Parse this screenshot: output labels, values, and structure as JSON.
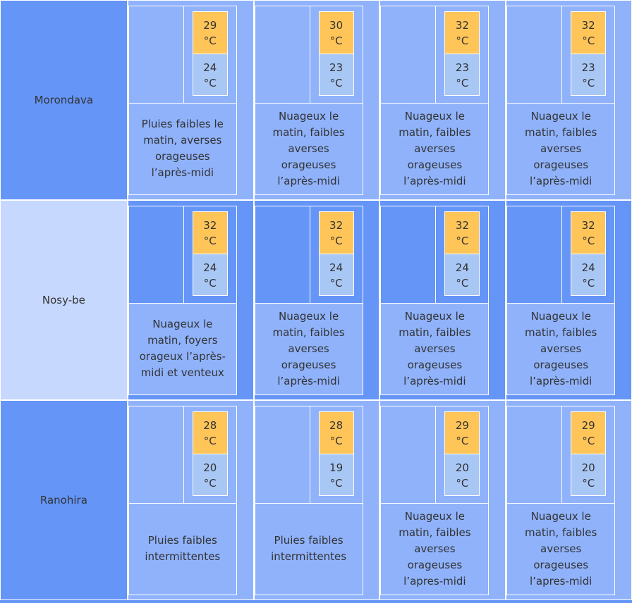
{
  "rows": [
    {
      "city": "Morondava",
      "days": [
        {
          "max": "29",
          "min": "24",
          "unit": "°C",
          "desc": "Pluies faibles le matin, averses orageuses l’après-midi"
        },
        {
          "max": "30",
          "min": "23",
          "unit": "°C",
          "desc": "Nuageux le matin, faibles averses orageuses l’après-midi"
        },
        {
          "max": "32",
          "min": "23",
          "unit": "°C",
          "desc": "Nuageux le matin, faibles averses orageuses l’après-midi"
        },
        {
          "max": "32",
          "min": "23",
          "unit": "°C",
          "desc": "Nuageux le matin, faibles averses orageuses l’après-midi"
        }
      ]
    },
    {
      "city": "Nosy-be",
      "days": [
        {
          "max": "32",
          "min": "24",
          "unit": "°C",
          "desc": "Nuageux le matin, foyers orageux l’après-midi et venteux"
        },
        {
          "max": "32",
          "min": "24",
          "unit": "°C",
          "desc": "Nuageux le matin, faibles averses orageuses l’après-midi"
        },
        {
          "max": "32",
          "min": "24",
          "unit": "°C",
          "desc": "Nuageux le matin, faibles averses orageuses l’après-midi"
        },
        {
          "max": "32",
          "min": "24",
          "unit": "°C",
          "desc": "Nuageux le matin, faibles averses orageuses l’après-midi"
        }
      ]
    },
    {
      "city": "Ranohira",
      "days": [
        {
          "max": "28",
          "min": "20",
          "unit": "°C",
          "desc": "Pluies faibles intermittentes"
        },
        {
          "max": "28",
          "min": "19",
          "unit": "°C",
          "desc": "Pluies faibles intermittentes"
        },
        {
          "max": "29",
          "min": "20",
          "unit": "°C",
          "desc": "Nuageux le matin, faibles averses orageuses l’apres-midi"
        },
        {
          "max": "29",
          "min": "20",
          "unit": "°C",
          "desc": "Nuageux le matin, faibles averses orageuses l’apres-midi"
        }
      ]
    }
  ],
  "colors": {
    "max_temp_bg": "#ffc559",
    "min_temp_bg": "#a8c7f5",
    "row_dark": "#6495f7",
    "row_light": "#8fb2fb",
    "city_light": "#c6d8fd"
  }
}
